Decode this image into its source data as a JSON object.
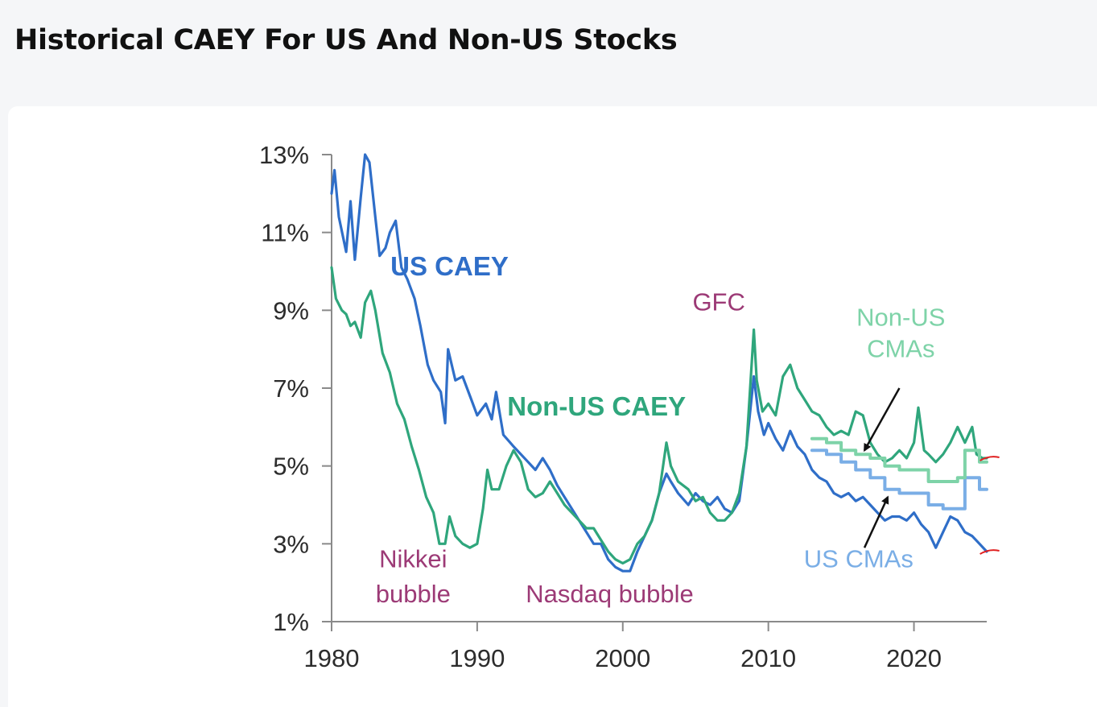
{
  "page": {
    "title": "Historical CAEY For US And Non-US Stocks"
  },
  "colors": {
    "us": "#2f6ec8",
    "non_us": "#2fa67c",
    "us_cma": "#7aaee6",
    "non_us_cma": "#7ed3a8",
    "event": "#9c3a76",
    "arrow": "#111111",
    "marker": "#e02020",
    "axis": "#8a8a8a"
  },
  "chart_data": {
    "type": "line",
    "title": "Historical CAEY For US And Non-US Stocks",
    "xlabel": "",
    "ylabel": "",
    "xlim": [
      1980,
      2025
    ],
    "ylim": [
      1,
      13
    ],
    "x_ticks": [
      1980,
      1990,
      2000,
      2010,
      2020
    ],
    "x_tick_labels": [
      "1980",
      "1990",
      "2000",
      "2010",
      "2020"
    ],
    "y_ticks": [
      1,
      3,
      5,
      7,
      9,
      11,
      13
    ],
    "y_tick_labels": [
      "1%",
      "3%",
      "5%",
      "7%",
      "9%",
      "11%",
      "13%"
    ],
    "grid": false,
    "legend": "none",
    "series": [
      {
        "name": "US CAEY",
        "color": "#2f6ec8",
        "step": false,
        "points": [
          [
            1980,
            12
          ],
          [
            1980.2,
            12.6
          ],
          [
            1980.5,
            11.4
          ],
          [
            1981,
            10.5
          ],
          [
            1981.3,
            11.8
          ],
          [
            1981.6,
            10.3
          ],
          [
            1982,
            11.9
          ],
          [
            1982.3,
            13
          ],
          [
            1982.6,
            12.8
          ],
          [
            1983,
            11.4
          ],
          [
            1983.3,
            10.4
          ],
          [
            1983.7,
            10.6
          ],
          [
            1984,
            11.0
          ],
          [
            1984.4,
            11.3
          ],
          [
            1984.8,
            10.1
          ],
          [
            1985.2,
            9.8
          ],
          [
            1985.7,
            9.3
          ],
          [
            1986.1,
            8.6
          ],
          [
            1986.6,
            7.6
          ],
          [
            1987,
            7.2
          ],
          [
            1987.5,
            6.9
          ],
          [
            1987.8,
            6.1
          ],
          [
            1988,
            8.0
          ],
          [
            1988.5,
            7.2
          ],
          [
            1989,
            7.3
          ],
          [
            1989.6,
            6.7
          ],
          [
            1990,
            6.3
          ],
          [
            1990.6,
            6.6
          ],
          [
            1991,
            6.2
          ],
          [
            1991.3,
            6.9
          ],
          [
            1991.8,
            5.8
          ],
          [
            1992.5,
            5.5
          ],
          [
            1993,
            5.3
          ],
          [
            1993.5,
            5.1
          ],
          [
            1994,
            4.9
          ],
          [
            1994.5,
            5.2
          ],
          [
            1995,
            4.9
          ],
          [
            1995.5,
            4.5
          ],
          [
            1996,
            4.2
          ],
          [
            1996.5,
            3.9
          ],
          [
            1997,
            3.6
          ],
          [
            1997.5,
            3.3
          ],
          [
            1998,
            3.0
          ],
          [
            1998.5,
            3.0
          ],
          [
            1999,
            2.6
          ],
          [
            1999.5,
            2.4
          ],
          [
            2000,
            2.3
          ],
          [
            2000.5,
            2.3
          ],
          [
            2001,
            2.8
          ],
          [
            2001.5,
            3.2
          ],
          [
            2002,
            3.6
          ],
          [
            2002.5,
            4.3
          ],
          [
            2003,
            4.8
          ],
          [
            2003.3,
            4.6
          ],
          [
            2003.8,
            4.3
          ],
          [
            2004.5,
            4.0
          ],
          [
            2005,
            4.3
          ],
          [
            2005.5,
            4.1
          ],
          [
            2006,
            4.0
          ],
          [
            2006.5,
            4.2
          ],
          [
            2007,
            3.9
          ],
          [
            2007.5,
            3.8
          ],
          [
            2008,
            4.1
          ],
          [
            2008.5,
            5.5
          ],
          [
            2009,
            7.3
          ],
          [
            2009.3,
            6.4
          ],
          [
            2009.7,
            5.8
          ],
          [
            2010,
            6.1
          ],
          [
            2010.5,
            5.7
          ],
          [
            2011,
            5.4
          ],
          [
            2011.5,
            5.9
          ],
          [
            2012,
            5.5
          ],
          [
            2012.5,
            5.3
          ],
          [
            2013,
            4.9
          ],
          [
            2013.5,
            4.7
          ],
          [
            2014,
            4.6
          ],
          [
            2014.5,
            4.3
          ],
          [
            2015,
            4.2
          ],
          [
            2015.5,
            4.3
          ],
          [
            2016,
            4.1
          ],
          [
            2016.5,
            4.2
          ],
          [
            2017,
            4.0
          ],
          [
            2017.5,
            3.8
          ],
          [
            2018,
            3.6
          ],
          [
            2018.5,
            3.7
          ],
          [
            2019,
            3.7
          ],
          [
            2019.5,
            3.6
          ],
          [
            2020,
            3.8
          ],
          [
            2020.5,
            3.5
          ],
          [
            2021,
            3.3
          ],
          [
            2021.5,
            2.9
          ],
          [
            2022,
            3.3
          ],
          [
            2022.5,
            3.7
          ],
          [
            2023,
            3.6
          ],
          [
            2023.5,
            3.3
          ],
          [
            2024,
            3.2
          ],
          [
            2024.5,
            3.0
          ],
          [
            2025,
            2.8
          ]
        ]
      },
      {
        "name": "Non-US CAEY",
        "color": "#2fa67c",
        "step": false,
        "points": [
          [
            1980,
            10.1
          ],
          [
            1980.3,
            9.3
          ],
          [
            1980.7,
            9.0
          ],
          [
            1981,
            8.9
          ],
          [
            1981.3,
            8.6
          ],
          [
            1981.6,
            8.7
          ],
          [
            1982,
            8.3
          ],
          [
            1982.3,
            9.2
          ],
          [
            1982.7,
            9.5
          ],
          [
            1983,
            9.0
          ],
          [
            1983.5,
            7.9
          ],
          [
            1984,
            7.4
          ],
          [
            1984.5,
            6.6
          ],
          [
            1985,
            6.2
          ],
          [
            1985.5,
            5.5
          ],
          [
            1986,
            4.9
          ],
          [
            1986.5,
            4.2
          ],
          [
            1987,
            3.8
          ],
          [
            1987.4,
            3.0
          ],
          [
            1987.8,
            3.0
          ],
          [
            1988.1,
            3.7
          ],
          [
            1988.5,
            3.2
          ],
          [
            1989,
            3.0
          ],
          [
            1989.5,
            2.9
          ],
          [
            1990,
            3.0
          ],
          [
            1990.4,
            3.9
          ],
          [
            1990.7,
            4.9
          ],
          [
            1991,
            4.4
          ],
          [
            1991.5,
            4.4
          ],
          [
            1992,
            5.0
          ],
          [
            1992.5,
            5.4
          ],
          [
            1993,
            5.1
          ],
          [
            1993.5,
            4.4
          ],
          [
            1994,
            4.2
          ],
          [
            1994.5,
            4.3
          ],
          [
            1995,
            4.6
          ],
          [
            1995.5,
            4.3
          ],
          [
            1996,
            4.0
          ],
          [
            1996.5,
            3.8
          ],
          [
            1997,
            3.6
          ],
          [
            1997.5,
            3.4
          ],
          [
            1998,
            3.4
          ],
          [
            1998.5,
            3.1
          ],
          [
            1999,
            2.8
          ],
          [
            1999.5,
            2.6
          ],
          [
            2000,
            2.5
          ],
          [
            2000.5,
            2.6
          ],
          [
            2001,
            3.0
          ],
          [
            2001.5,
            3.2
          ],
          [
            2002,
            3.6
          ],
          [
            2002.5,
            4.3
          ],
          [
            2003,
            5.6
          ],
          [
            2003.3,
            5.0
          ],
          [
            2003.8,
            4.6
          ],
          [
            2004.5,
            4.4
          ],
          [
            2005,
            4.1
          ],
          [
            2005.5,
            4.2
          ],
          [
            2006,
            3.8
          ],
          [
            2006.5,
            3.6
          ],
          [
            2007,
            3.6
          ],
          [
            2007.5,
            3.8
          ],
          [
            2008,
            4.3
          ],
          [
            2008.5,
            5.5
          ],
          [
            2009,
            8.5
          ],
          [
            2009.2,
            7.2
          ],
          [
            2009.6,
            6.4
          ],
          [
            2010,
            6.6
          ],
          [
            2010.5,
            6.3
          ],
          [
            2011,
            7.3
          ],
          [
            2011.5,
            7.6
          ],
          [
            2012,
            7.0
          ],
          [
            2012.5,
            6.7
          ],
          [
            2013,
            6.4
          ],
          [
            2013.5,
            6.3
          ],
          [
            2014,
            6.0
          ],
          [
            2014.5,
            5.8
          ],
          [
            2015,
            5.9
          ],
          [
            2015.5,
            5.8
          ],
          [
            2016,
            6.4
          ],
          [
            2016.5,
            6.3
          ],
          [
            2017,
            5.6
          ],
          [
            2017.5,
            5.3
          ],
          [
            2018,
            5.1
          ],
          [
            2018.5,
            5.2
          ],
          [
            2019,
            5.4
          ],
          [
            2019.5,
            5.2
          ],
          [
            2020,
            5.6
          ],
          [
            2020.3,
            6.5
          ],
          [
            2020.7,
            5.4
          ],
          [
            2021,
            5.3
          ],
          [
            2021.5,
            5.1
          ],
          [
            2022,
            5.3
          ],
          [
            2022.5,
            5.6
          ],
          [
            2023,
            6.0
          ],
          [
            2023.5,
            5.6
          ],
          [
            2024,
            6.0
          ],
          [
            2024.3,
            5.3
          ],
          [
            2024.7,
            5.2
          ],
          [
            2025,
            5.2
          ]
        ]
      },
      {
        "name": "US CMAs",
        "color": "#7aaee6",
        "step": true,
        "points": [
          [
            2013,
            5.4
          ],
          [
            2014,
            5.3
          ],
          [
            2015,
            5.1
          ],
          [
            2016,
            4.9
          ],
          [
            2017,
            4.7
          ],
          [
            2018,
            4.4
          ],
          [
            2019,
            4.3
          ],
          [
            2020,
            4.3
          ],
          [
            2021,
            4.0
          ],
          [
            2022,
            3.9
          ],
          [
            2023,
            3.9
          ],
          [
            2023.5,
            4.7
          ],
          [
            2024.5,
            4.4
          ],
          [
            2025,
            4.4
          ]
        ]
      },
      {
        "name": "Non-US CMAs",
        "color": "#7ed3a8",
        "step": true,
        "points": [
          [
            2013,
            5.7
          ],
          [
            2014,
            5.6
          ],
          [
            2015,
            5.4
          ],
          [
            2016,
            5.3
          ],
          [
            2017,
            5.2
          ],
          [
            2018,
            5.0
          ],
          [
            2019,
            4.9
          ],
          [
            2020,
            4.9
          ],
          [
            2021,
            4.6
          ],
          [
            2022,
            4.6
          ],
          [
            2023,
            4.7
          ],
          [
            2023.5,
            5.4
          ],
          [
            2024.5,
            5.1
          ],
          [
            2025,
            5.1
          ]
        ]
      }
    ],
    "annotations": [
      {
        "text": "US CAEY",
        "color": "#2f6ec8",
        "bold": true,
        "x": 1988.1,
        "y": 9.9,
        "anchor": "middle"
      },
      {
        "text": "Non-US CAEY",
        "color": "#2fa67c",
        "bold": true,
        "x": 1998.2,
        "y": 6.3,
        "anchor": "middle"
      },
      {
        "text": "GFC",
        "color": "#9c3a76",
        "bold": false,
        "x": 2006.6,
        "y": 9.0,
        "anchor": "middle"
      },
      {
        "text": "Nikkei",
        "color": "#9c3a76",
        "bold": false,
        "x": 1985.6,
        "y": 2.4,
        "anchor": "middle"
      },
      {
        "text": "bubble",
        "color": "#9c3a76",
        "bold": false,
        "x": 1985.6,
        "y": 1.5,
        "anchor": "middle"
      },
      {
        "text": "Nasdaq bubble",
        "color": "#9c3a76",
        "bold": false,
        "x": 1999.1,
        "y": 1.5,
        "anchor": "middle"
      },
      {
        "text": "Non-US",
        "color": "#7ed3a8",
        "bold": false,
        "x": 2019.1,
        "y": 8.6,
        "anchor": "middle"
      },
      {
        "text": "CMAs",
        "color": "#7ed3a8",
        "bold": false,
        "x": 2019.1,
        "y": 7.8,
        "anchor": "middle"
      },
      {
        "text": "US CMAs",
        "color": "#7aaee6",
        "bold": false,
        "x": 2016.2,
        "y": 2.4,
        "anchor": "middle"
      }
    ],
    "arrows": [
      {
        "from": [
          2019,
          7.0
        ],
        "to": [
          2016.6,
          5.4
        ]
      },
      {
        "from": [
          2016.6,
          2.9
        ],
        "to": [
          2018.2,
          4.2
        ]
      }
    ],
    "markers": [
      {
        "x": 2025.2,
        "y": 5.2
      },
      {
        "x": 2025.2,
        "y": 2.8
      }
    ]
  }
}
